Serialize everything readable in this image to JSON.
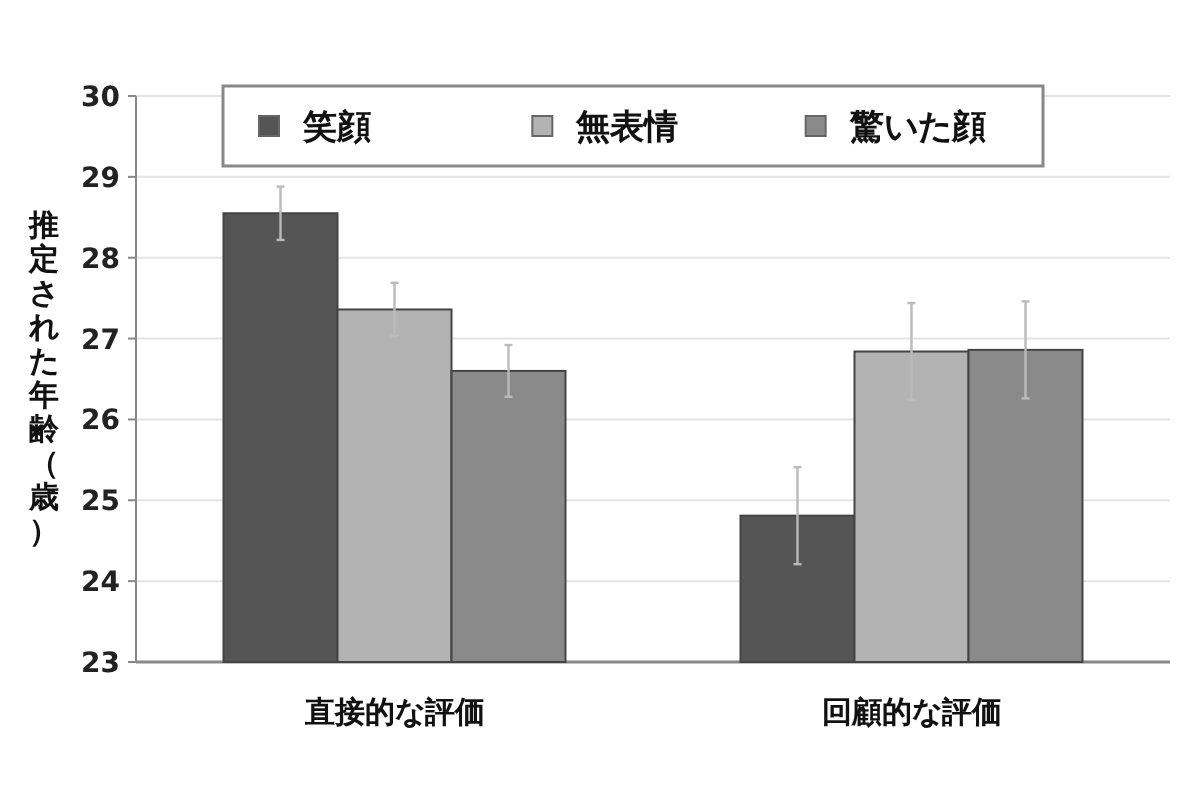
{
  "chart_data": {
    "type": "bar",
    "ylabel": "推定された年齢（歳）",
    "categories": [
      "直接的な評価",
      "回顧的な評価"
    ],
    "series": [
      {
        "name": "笑顔",
        "color": "#555555",
        "values": [
          28.55,
          24.81
        ],
        "errors": [
          0.33,
          0.6
        ]
      },
      {
        "name": "無表情",
        "color": "#b3b3b3",
        "values": [
          27.36,
          26.84
        ],
        "errors": [
          0.33,
          0.6
        ]
      },
      {
        "name": "驚いた顔",
        "color": "#8a8a8a",
        "values": [
          26.6,
          26.86
        ],
        "errors": [
          0.32,
          0.6
        ]
      }
    ],
    "ylim": [
      23,
      30
    ],
    "yticks": [
      23,
      24,
      25,
      26,
      27,
      28,
      29,
      30
    ],
    "grid": "y",
    "legend": "top"
  }
}
